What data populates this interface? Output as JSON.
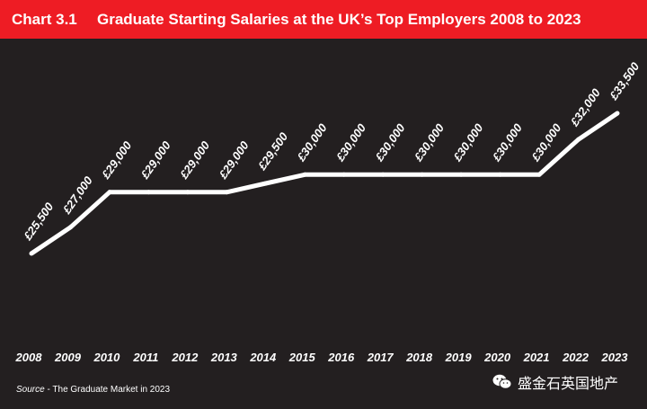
{
  "header": {
    "chart_label": "Chart 3.1",
    "title": "Graduate Starting Salaries at the UK’s Top Employers 2008 to 2023"
  },
  "source": {
    "label": "Source",
    "text": " - The Graduate Market in 2023"
  },
  "watermark": {
    "text": "盛金石英国地产",
    "icon": "wechat-icon"
  },
  "colors": {
    "header_bg": "#ee1c24",
    "background": "#231f20",
    "line": "#ffffff",
    "text": "#ffffff"
  },
  "chart_data": {
    "type": "line",
    "title": "Graduate Starting Salaries at the UK’s Top Employers 2008 to 2023",
    "categories": [
      "2008",
      "2009",
      "2010",
      "2011",
      "2012",
      "2013",
      "2014",
      "2015",
      "2016",
      "2017",
      "2018",
      "2019",
      "2020",
      "2021",
      "2022",
      "2023"
    ],
    "series": [
      {
        "values": [
          25500,
          27000,
          29000,
          29000,
          29000,
          29000,
          29500,
          30000,
          30000,
          30000,
          30000,
          30000,
          30000,
          30000,
          32000,
          33500
        ],
        "labels": [
          "£25,500",
          "£27,000",
          "£29,000",
          "£29,000",
          "£29,000",
          "£29,000",
          "£29,500",
          "£30,000",
          "£30,000",
          "£30,000",
          "£30,000",
          "£30,000",
          "£30,000",
          "£30,000",
          "£32,000",
          "£33,500"
        ]
      }
    ],
    "grid": false,
    "legend": "none"
  }
}
